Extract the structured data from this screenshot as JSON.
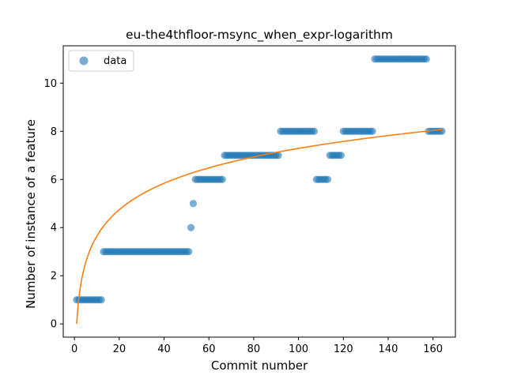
{
  "chart_data": {
    "type": "scatter",
    "title": "eu-the4thfloor-msync_when_expr-logarithm",
    "xlabel": "Commit number",
    "ylabel": "Number of instance of a feature",
    "xlim": [
      -5,
      170
    ],
    "ylim": [
      -0.55,
      11.55
    ],
    "xticks": [
      0,
      20,
      40,
      60,
      80,
      100,
      120,
      140,
      160
    ],
    "yticks": [
      0,
      2,
      4,
      6,
      8,
      10
    ],
    "grid": false,
    "legend": {
      "position": "top-left",
      "entries": [
        "data"
      ]
    },
    "colors": {
      "points": "#1f77b4",
      "fit": "#ff7f0e"
    },
    "series": [
      {
        "name": "data",
        "kind": "scatter",
        "segments": [
          {
            "x_start": 1,
            "x_end": 12,
            "y": 1
          },
          {
            "x_start": 13,
            "x_end": 51,
            "y": 3
          },
          {
            "x_start": 52,
            "x_end": 52,
            "y": 4
          },
          {
            "x_start": 53,
            "x_end": 53,
            "y": 5
          },
          {
            "x_start": 54,
            "x_end": 66,
            "y": 6
          },
          {
            "x_start": 67,
            "x_end": 91,
            "y": 7
          },
          {
            "x_start": 92,
            "x_end": 107,
            "y": 8
          },
          {
            "x_start": 108,
            "x_end": 113,
            "y": 6
          },
          {
            "x_start": 114,
            "x_end": 119,
            "y": 7
          },
          {
            "x_start": 120,
            "x_end": 133,
            "y": 8
          },
          {
            "x_start": 134,
            "x_end": 157,
            "y": 11
          },
          {
            "x_start": 158,
            "x_end": 164,
            "y": 8
          }
        ]
      },
      {
        "kind": "line",
        "model": "logarithmic",
        "equation": {
          "a": 1.583,
          "b": 0
        },
        "x_range": [
          1,
          164
        ]
      }
    ]
  }
}
